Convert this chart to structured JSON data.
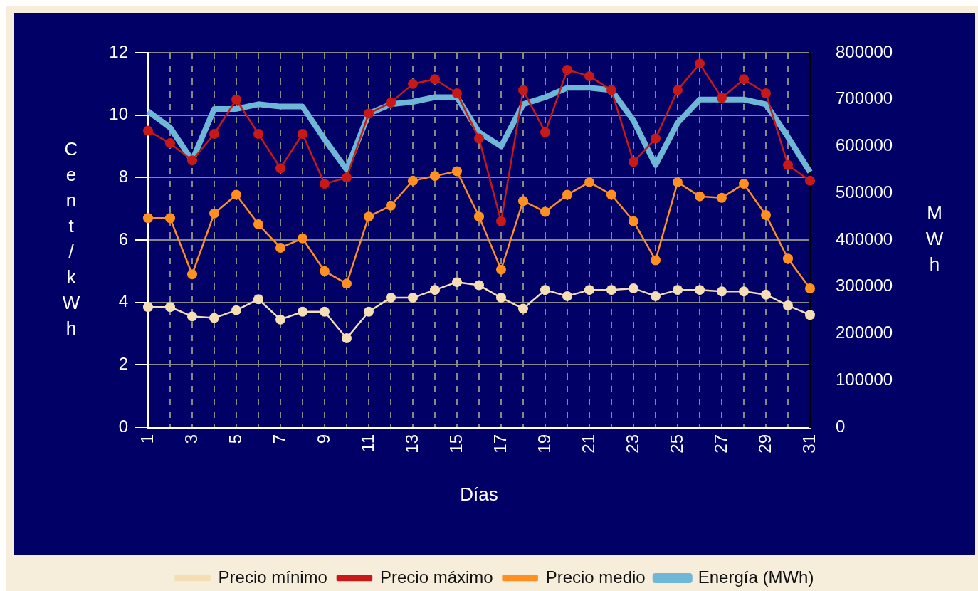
{
  "chart_data": {
    "type": "line",
    "xlabel": "Días",
    "ylabel": "Cent/kWh",
    "y2label": "MWh",
    "categories": [
      "1",
      null,
      "3",
      null,
      "5",
      null,
      "7",
      null,
      "9",
      null,
      "11",
      null,
      "13",
      null,
      "15",
      null,
      "17",
      null,
      "19",
      null,
      "21",
      null,
      "23",
      null,
      "25",
      null,
      "27",
      null,
      "29",
      null,
      "31"
    ],
    "series": [
      {
        "name": "Precio mínimo",
        "color": "#f5deb3",
        "values": [
          3.85,
          3.85,
          3.55,
          3.5,
          3.75,
          4.1,
          3.45,
          3.7,
          3.7,
          2.85,
          3.7,
          4.15,
          4.15,
          4.4,
          4.65,
          4.55,
          4.15,
          3.8,
          4.4,
          4.2,
          4.4,
          4.4,
          4.45,
          4.2,
          4.4,
          4.4,
          4.35,
          4.35,
          4.25,
          3.9,
          3.6
        ]
      },
      {
        "name": "Precio máximo",
        "color": "#c81818",
        "values": [
          9.5,
          9.1,
          8.55,
          9.4,
          10.5,
          9.4,
          8.3,
          9.4,
          7.8,
          8.0,
          10.05,
          10.4,
          11.0,
          11.15,
          10.7,
          9.25,
          6.6,
          10.8,
          9.45,
          11.45,
          11.25,
          10.8,
          8.5,
          9.25,
          10.8,
          11.65,
          10.55,
          11.15,
          10.7,
          8.4,
          7.9
        ]
      },
      {
        "name": "Precio medio",
        "color": "#ff9020",
        "values": [
          6.7,
          6.7,
          4.9,
          6.85,
          7.45,
          6.5,
          5.75,
          6.05,
          5.0,
          4.6,
          6.75,
          7.1,
          7.9,
          8.05,
          8.2,
          6.75,
          5.05,
          7.25,
          6.9,
          7.45,
          7.85,
          7.45,
          6.6,
          5.35,
          7.85,
          7.4,
          7.35,
          7.8,
          6.8,
          5.4,
          4.45
        ]
      },
      {
        "name": "Energía (MWh)",
        "color": "#6fb7d6",
        "axis": "y2",
        "marker": "none",
        "values": [
          675000,
          640000,
          570000,
          680000,
          680000,
          690000,
          685000,
          685000,
          615000,
          550000,
          670000,
          690000,
          695000,
          705000,
          705000,
          630000,
          600000,
          690000,
          705000,
          725000,
          725000,
          720000,
          655000,
          560000,
          650000,
          700000,
          700000,
          700000,
          690000,
          620000,
          545000
        ]
      }
    ],
    "ylim": [
      0,
      12
    ],
    "yticks": [
      0,
      2,
      4,
      6,
      8,
      10,
      12
    ],
    "y2lim": [
      0,
      800000
    ],
    "y2ticks": [
      0,
      100000,
      200000,
      300000,
      400000,
      500000,
      600000,
      700000,
      800000
    ],
    "grid": true,
    "legend": "bottom",
    "marker": "circle"
  }
}
